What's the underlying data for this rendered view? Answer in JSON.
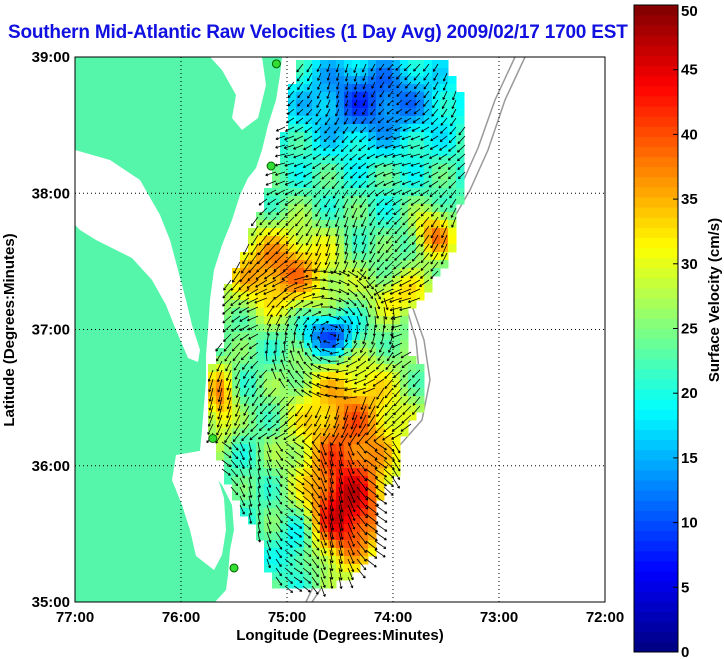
{
  "title": "Southern Mid-Atlantic Raw Velocities (1 Day Avg) 2009/02/17 1700 EST",
  "colors": {
    "title": "#1010e0",
    "land": "#55f5aa",
    "water": "#ffffff",
    "arrows": "#000000",
    "bathymetry": "#999999"
  },
  "chart_data": {
    "type": "map",
    "xlabel": "Longitude (Degrees:Minutes)",
    "ylabel": "Latitude (Degrees:Minutes)",
    "xlim": [
      -77,
      -72
    ],
    "ylim": [
      35,
      39
    ],
    "x_ticks": [
      "77:00",
      "76:00",
      "75:00",
      "74:00",
      "73:00",
      "72:00"
    ],
    "y_ticks": [
      "35:00",
      "36:00",
      "37:00",
      "38:00",
      "39:00"
    ],
    "grid": "dotted",
    "colorbar": {
      "label": "Surface Velocity (cm/s)",
      "range": [
        0,
        50
      ],
      "ticks": [
        "0",
        "5",
        "10",
        "15",
        "20",
        "25",
        "30",
        "35",
        "40",
        "45",
        "50"
      ],
      "colormap": "jet"
    },
    "stations_lonlat": [
      [
        -75.1,
        38.95
      ],
      [
        -75.15,
        38.2
      ],
      [
        -75.7,
        36.2
      ],
      [
        -75.5,
        35.25
      ]
    ]
  }
}
